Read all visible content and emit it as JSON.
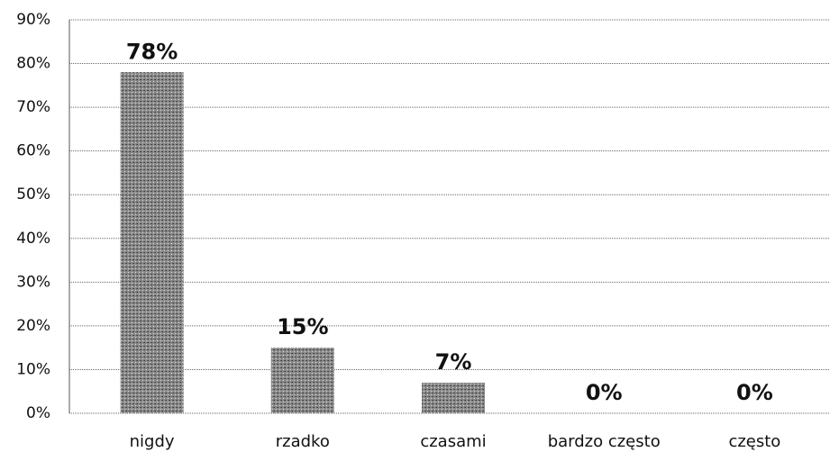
{
  "chart_data": {
    "type": "bar",
    "categories": [
      "nigdy",
      "rzadko",
      "czasami",
      "bardzo często",
      "często"
    ],
    "values": [
      78,
      15,
      7,
      0,
      0
    ],
    "value_labels": [
      "78%",
      "15%",
      "7%",
      "0%",
      "0%"
    ],
    "color": "#8a8a8a",
    "ylim": [
      0,
      90
    ],
    "yticks": [
      {
        "value": 0,
        "label": "0%"
      },
      {
        "value": 10,
        "label": "10%"
      },
      {
        "value": 20,
        "label": "20%"
      },
      {
        "value": 30,
        "label": "30%"
      },
      {
        "value": 40,
        "label": "40%"
      },
      {
        "value": 50,
        "label": "50%"
      },
      {
        "value": 60,
        "label": "60%"
      },
      {
        "value": 70,
        "label": "70%"
      },
      {
        "value": 80,
        "label": "80%"
      },
      {
        "value": 90,
        "label": "90%"
      }
    ],
    "grid": true
  }
}
